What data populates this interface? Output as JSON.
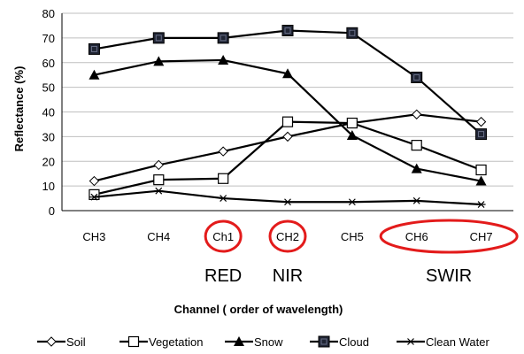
{
  "chart_data": {
    "type": "line",
    "title": "",
    "xlabel": "Channel  ( order of wavelength)",
    "ylabel": "Reflectance (%)",
    "ylim": [
      0,
      80
    ],
    "yticks": [
      0,
      10,
      20,
      30,
      40,
      50,
      60,
      70,
      80
    ],
    "categories": [
      "CH3",
      "CH4",
      "Ch1",
      "CH2",
      "CH5",
      "CH6",
      "CH7"
    ],
    "grid": "horizontal",
    "legend_position": "bottom",
    "series": [
      {
        "name": "Soil",
        "marker": "diamond",
        "values": [
          12,
          18.5,
          24,
          30,
          35.5,
          39,
          36
        ]
      },
      {
        "name": "Vegetation",
        "marker": "square-open",
        "values": [
          6.5,
          12.5,
          13,
          36,
          35.5,
          26.5,
          16.5
        ]
      },
      {
        "name": "Snow",
        "marker": "triangle",
        "values": [
          55,
          60.5,
          61,
          55.5,
          30.5,
          17,
          12
        ]
      },
      {
        "name": "Cloud",
        "marker": "square-filled",
        "values": [
          65.5,
          70,
          70,
          73,
          72,
          54,
          31
        ]
      },
      {
        "name": "Clean Water",
        "marker": "star",
        "values": [
          5.5,
          8,
          5,
          3.5,
          3.5,
          4,
          2.5
        ]
      }
    ],
    "annotations": [
      {
        "text": "RED",
        "category": "Ch1"
      },
      {
        "text": "NIR",
        "category": "CH2"
      },
      {
        "text": "SWIR",
        "category": "CH6-CH7"
      }
    ],
    "highlight_color": "#e31b1b",
    "line_color": "#000000",
    "grid_color": "#bfbfbf"
  }
}
